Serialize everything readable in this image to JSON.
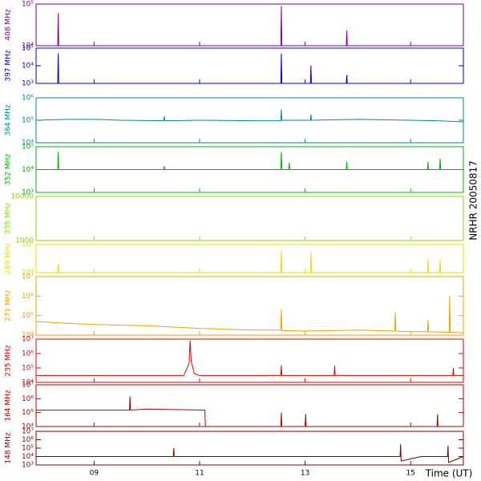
{
  "chart_data": [
    {
      "type": "line",
      "ylabel": "408 MHz",
      "color": "#800080",
      "log_y": true,
      "xlim": [
        7.9,
        16
      ],
      "ylim": [
        10000,
        100000
      ],
      "yticks": [
        {
          "value": 10000,
          "label": "10⁴"
        },
        {
          "value": 100000,
          "label": "10⁵"
        }
      ],
      "x": [
        7.9,
        8.31,
        8.32,
        8.33,
        12.54,
        12.55,
        12.56,
        13.78,
        13.79,
        13.8,
        16
      ],
      "values": [
        10000,
        10000,
        60000,
        10000,
        10000,
        90000,
        10000,
        10000,
        23000,
        10000,
        10000
      ]
    },
    {
      "type": "line",
      "ylabel": "397 MHz",
      "color": "#0000cc",
      "log_y": true,
      "xlim": [
        7.9,
        16
      ],
      "ylim": [
        1000,
        100000
      ],
      "yticks": [
        {
          "value": 1000,
          "label": "10³"
        },
        {
          "value": 10000,
          "label": "10⁴"
        },
        {
          "value": 100000,
          "label": "10⁵"
        }
      ],
      "x": [
        7.9,
        8.31,
        8.32,
        8.33,
        12.54,
        12.55,
        12.56,
        13.1,
        13.11,
        13.12,
        13.78,
        13.79,
        13.8,
        16
      ],
      "values": [
        1000,
        1000,
        50000,
        1000,
        1000,
        50000,
        1000,
        1000,
        10000,
        1000,
        1000,
        3000,
        1000,
        1000
      ]
    },
    {
      "type": "line",
      "ylabel": "364 MHz",
      "color": "#008b8b",
      "log_y": true,
      "xlim": [
        7.9,
        16
      ],
      "ylim": [
        10000,
        1000000
      ],
      "yticks": [
        {
          "value": 10000,
          "label": "10⁴"
        },
        {
          "value": 100000,
          "label": "10⁵"
        },
        {
          "value": 1000000,
          "label": "10⁶"
        }
      ],
      "x": [
        7.9,
        8.5,
        9,
        9.5,
        10.32,
        10.33,
        10.34,
        11,
        12,
        12.54,
        12.55,
        12.56,
        13,
        13.1,
        13.11,
        13.12,
        14,
        15,
        15.5,
        16
      ],
      "values": [
        100000,
        110000,
        110000,
        100000,
        95000,
        150000,
        95000,
        100000,
        95000,
        95000,
        300000,
        100000,
        100000,
        100000,
        180000,
        100000,
        110000,
        100000,
        95000,
        85000
      ]
    },
    {
      "type": "line",
      "ylabel": "352 MHz",
      "color": "#00b000",
      "log_y": true,
      "xlim": [
        7.9,
        16
      ],
      "ylim": [
        1000,
        100000
      ],
      "yticks": [
        {
          "value": 1000,
          "label": "10³"
        },
        {
          "value": 10000,
          "label": "10⁴"
        },
        {
          "value": 100000,
          "label": "10⁵"
        }
      ],
      "x": [
        7.9,
        8.31,
        8.32,
        8.33,
        10.32,
        10.33,
        10.34,
        12.54,
        12.55,
        12.56,
        12.69,
        12.7,
        12.71,
        13.78,
        13.79,
        13.8,
        15.32,
        15.33,
        15.34,
        15.55,
        15.56,
        15.57,
        16
      ],
      "values": [
        10000,
        10000,
        60000,
        10000,
        10000,
        14000,
        10000,
        10000,
        60000,
        10000,
        10000,
        20000,
        10000,
        10000,
        22000,
        10000,
        10000,
        22000,
        10000,
        10000,
        30000,
        10000,
        10000
      ]
    },
    {
      "type": "line",
      "ylabel": "335 MHz",
      "color": "#80e000",
      "log_y": true,
      "xlim": [
        7.9,
        16
      ],
      "ylim": [
        1000,
        10000
      ],
      "yticks": [
        1000,
        10000
      ],
      "x": [
        7.9,
        16
      ],
      "values": [
        10000,
        10000
      ]
    },
    {
      "type": "line",
      "ylabel": "289 MHz",
      "color": "#e0e000",
      "log_y": true,
      "xlim": [
        7.9,
        16
      ],
      "ylim": [
        10000,
        100000
      ],
      "yticks": [
        {
          "value": 10000,
          "label": "10⁴"
        },
        {
          "value": 100000,
          "label": "10⁵"
        }
      ],
      "x": [
        7.9,
        8.31,
        8.32,
        8.33,
        12.54,
        12.55,
        12.56,
        13.1,
        13.11,
        13.12,
        15.32,
        15.33,
        15.34,
        15.55,
        15.56,
        15.57,
        16
      ],
      "values": [
        10000,
        10000,
        20000,
        10000,
        10000,
        60000,
        10000,
        10000,
        55000,
        10000,
        10000,
        30000,
        10000,
        10000,
        28000,
        10000,
        10000
      ]
    },
    {
      "type": "line",
      "ylabel": "271 MHz",
      "color": "#f0a000",
      "log_y": true,
      "xlim": [
        7.9,
        16
      ],
      "ylim": [
        10000,
        10000000
      ],
      "yticks": [
        {
          "value": 10000,
          "label": "10⁴"
        },
        {
          "value": 100000,
          "label": "10⁵"
        },
        {
          "value": 1000000,
          "label": "10⁶"
        },
        {
          "value": 10000000,
          "label": "10⁷"
        }
      ],
      "x": [
        7.9,
        8.5,
        9,
        10,
        11,
        12,
        12.54,
        12.55,
        12.56,
        13,
        14,
        14.7,
        14.71,
        14.72,
        15,
        15.32,
        15.33,
        15.34,
        15.73,
        15.74,
        15.75,
        16
      ],
      "values": [
        50000,
        40000,
        35000,
        30000,
        22000,
        18000,
        18000,
        200000,
        17000,
        16000,
        18000,
        16000,
        150000,
        16000,
        15000,
        15000,
        60000,
        15000,
        14000,
        1000000,
        14000,
        13000
      ]
    },
    {
      "type": "line",
      "ylabel": "235 MHz",
      "color": "#e00000",
      "log_y": true,
      "xlim": [
        7.9,
        16
      ],
      "ylim": [
        10000,
        10000000
      ],
      "yticks": [
        {
          "value": 10000,
          "label": "10⁴"
        },
        {
          "value": 100000,
          "label": "10⁵"
        },
        {
          "value": 1000000,
          "label": "10⁶"
        },
        {
          "value": 10000000,
          "label": "10⁷"
        }
      ],
      "x": [
        7.9,
        10.7,
        10.8,
        10.82,
        10.84,
        10.9,
        11,
        12.54,
        12.55,
        12.56,
        13.55,
        13.56,
        13.57,
        15.8,
        15.81,
        15.82,
        16
      ],
      "values": [
        30000,
        30000,
        200000,
        8000000,
        300000,
        40000,
        30000,
        30000,
        150000,
        30000,
        30000,
        150000,
        30000,
        30000,
        100000,
        30000,
        30000
      ]
    },
    {
      "type": "line",
      "ylabel": "164 MHz",
      "color": "#b00000",
      "log_y": true,
      "xlim": [
        7.9,
        16
      ],
      "ylim": [
        10000,
        10000000
      ],
      "yticks": [
        {
          "value": 10000,
          "label": "10⁴"
        },
        {
          "value": 100000,
          "label": "10⁵"
        },
        {
          "value": 1000000,
          "label": "10⁶"
        },
        {
          "value": 10000000,
          "label": "10⁷"
        }
      ],
      "x": [
        7.9,
        9,
        9.67,
        9.68,
        9.69,
        10,
        11.1,
        11.11,
        12.54,
        12.55,
        12.56,
        13,
        13.01,
        13.02,
        15.5,
        15.51,
        15.52,
        16
      ],
      "values": [
        150000,
        150000,
        150000,
        1500000,
        150000,
        180000,
        150000,
        10000,
        10000,
        100000,
        10000,
        10000,
        80000,
        10000,
        10000,
        80000,
        10000,
        10000
      ]
    },
    {
      "type": "line",
      "ylabel": "148 MHz",
      "color": "#800000",
      "log_y": true,
      "xlim": [
        7.9,
        16
      ],
      "ylim": [
        1000,
        10000000
      ],
      "yticks": [
        {
          "value": 1000,
          "label": "10³"
        },
        {
          "value": 10000,
          "label": "10⁴"
        },
        {
          "value": 100000,
          "label": "10⁵"
        },
        {
          "value": 1000000,
          "label": "10⁶"
        },
        {
          "value": 10000000,
          "label": "10⁷"
        }
      ],
      "x": [
        7.9,
        9,
        10.5,
        10.51,
        10.52,
        12,
        13.5,
        14.5,
        14.8,
        14.81,
        14.82,
        15.2,
        15.7,
        15.71,
        15.72,
        16
      ],
      "values": [
        10000,
        10000,
        10000,
        100000,
        10000,
        10000,
        10000,
        10000,
        10000,
        300000,
        3000,
        10000,
        10000,
        200000,
        2000,
        10000
      ],
      "xticks": [
        {
          "value": 9,
          "label": "09"
        },
        {
          "value": 11,
          "label": "11"
        },
        {
          "value": 13,
          "label": "13"
        },
        {
          "value": 15,
          "label": "15"
        }
      ],
      "xlabel": "Time (UT)",
      "annotation": "NRHR 20050817"
    }
  ]
}
